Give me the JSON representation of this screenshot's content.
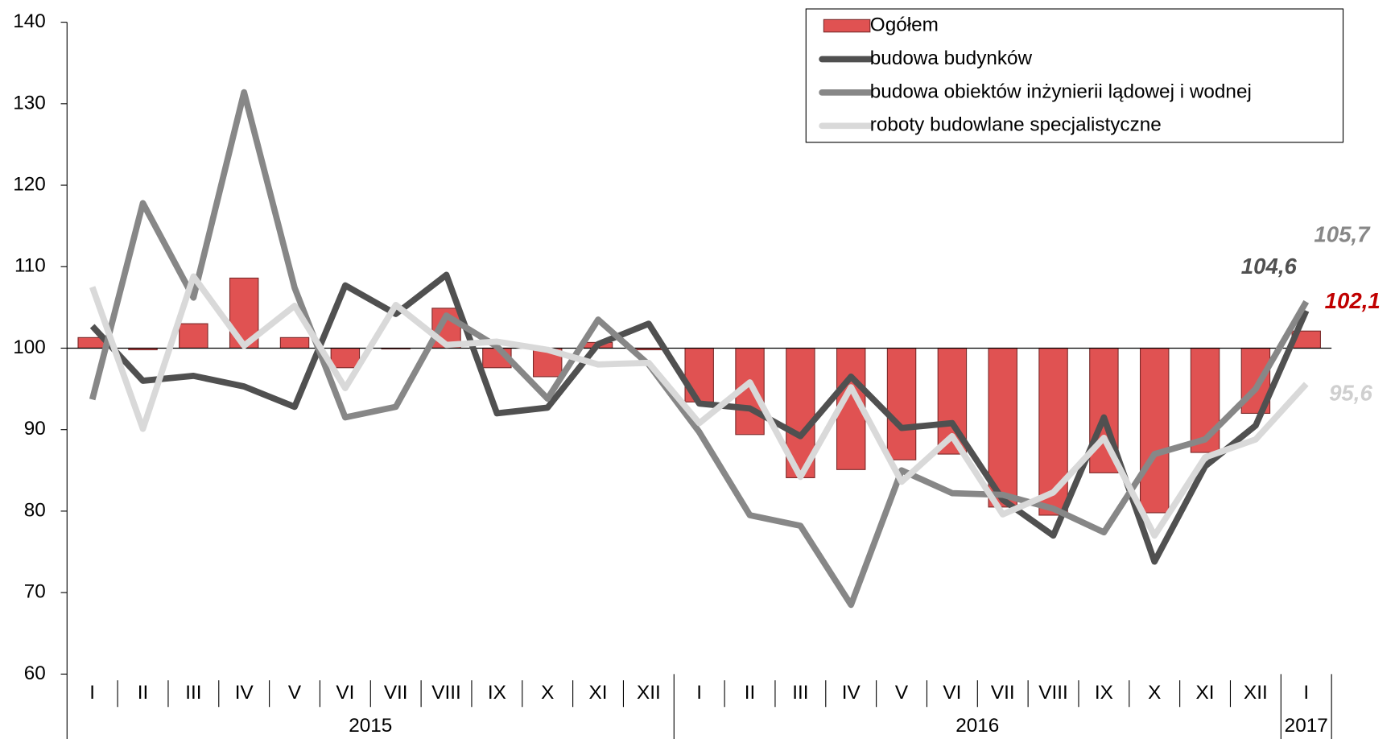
{
  "chart_data": {
    "type": "combo",
    "categories": [
      "I",
      "II",
      "III",
      "IV",
      "V",
      "VI",
      "VII",
      "VIII",
      "IX",
      "X",
      "XI",
      "XII",
      "I",
      "II",
      "III",
      "IV",
      "V",
      "VI",
      "VII",
      "VIII",
      "IX",
      "X",
      "XI",
      "XII",
      "I"
    ],
    "category_groups": [
      "2015",
      "2015",
      "2015",
      "2015",
      "2015",
      "2015",
      "2015",
      "2015",
      "2015",
      "2015",
      "2015",
      "2015",
      "2016",
      "2016",
      "2016",
      "2016",
      "2016",
      "2016",
      "2016",
      "2016",
      "2016",
      "2016",
      "2016",
      "2016",
      "2017"
    ],
    "ylim": [
      60,
      140
    ],
    "yticks": [
      60,
      70,
      80,
      90,
      100,
      110,
      120,
      130,
      140
    ],
    "baseline": 100,
    "legend": "top-right",
    "series": [
      {
        "name": "Ogółem",
        "type": "bar",
        "color": "#e05252",
        "label_color": "#c00000",
        "values": [
          101.3,
          99.8,
          103.0,
          108.6,
          101.3,
          97.6,
          99.9,
          104.9,
          97.6,
          96.5,
          100.7,
          99.8,
          93.4,
          89.4,
          84.1,
          85.1,
          86.3,
          87.0,
          80.5,
          79.5,
          84.7,
          79.8,
          87.2,
          92.0,
          102.1
        ],
        "value_labels": [
          null,
          null,
          null,
          null,
          null,
          null,
          null,
          null,
          null,
          null,
          null,
          null,
          null,
          null,
          null,
          null,
          null,
          null,
          null,
          null,
          null,
          null,
          null,
          null,
          "102,1"
        ]
      },
      {
        "name": "budowa budynków",
        "type": "line",
        "color": "#505050",
        "label_color": "#505050",
        "values": [
          102.7,
          96.0,
          96.6,
          95.3,
          92.8,
          107.7,
          104.2,
          109.0,
          92.0,
          92.7,
          100.5,
          103.0,
          93.2,
          92.6,
          89.2,
          96.5,
          90.2,
          90.8,
          81.4,
          77.0,
          91.5,
          73.8,
          85.5,
          90.5,
          104.6
        ],
        "value_labels": [
          null,
          null,
          null,
          null,
          null,
          null,
          null,
          null,
          null,
          null,
          null,
          null,
          null,
          null,
          null,
          null,
          null,
          null,
          null,
          null,
          null,
          null,
          null,
          null,
          "104,6"
        ]
      },
      {
        "name": "budowa obiektów inżynierii lądowej i wodnej",
        "type": "line",
        "color": "#878787",
        "label_color": "#878787",
        "values": [
          93.7,
          117.8,
          106.2,
          131.4,
          107.4,
          91.5,
          92.8,
          104.0,
          100.2,
          93.8,
          103.5,
          98.0,
          89.7,
          79.5,
          78.2,
          68.5,
          85.0,
          82.2,
          82.0,
          80.3,
          77.4,
          87.0,
          88.8,
          95.0,
          105.7
        ],
        "value_labels": [
          null,
          null,
          null,
          null,
          null,
          null,
          null,
          null,
          null,
          null,
          null,
          null,
          null,
          null,
          null,
          null,
          null,
          null,
          null,
          null,
          null,
          null,
          null,
          null,
          "105,7"
        ]
      },
      {
        "name": "roboty budowlane specjalistyczne",
        "type": "line",
        "color": "#d9d9d9",
        "label_color": "#cfcfcf",
        "values": [
          107.5,
          90.1,
          108.8,
          100.3,
          105.2,
          95.1,
          105.3,
          100.4,
          100.8,
          99.8,
          98.0,
          98.2,
          90.8,
          95.8,
          84.2,
          95.2,
          83.6,
          89.2,
          79.6,
          82.3,
          89.0,
          77.0,
          86.6,
          88.8,
          95.6
        ],
        "value_labels": [
          null,
          null,
          null,
          null,
          null,
          null,
          null,
          null,
          null,
          null,
          null,
          null,
          null,
          null,
          null,
          null,
          null,
          null,
          null,
          null,
          null,
          null,
          null,
          null,
          "95,6"
        ]
      }
    ]
  }
}
